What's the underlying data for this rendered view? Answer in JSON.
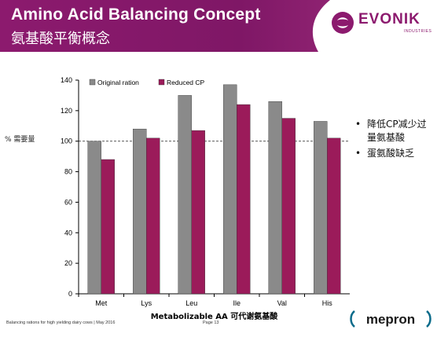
{
  "header": {
    "title_en": "Amino Acid Balancing Concept",
    "title_zh": "氨基酸平衡概念"
  },
  "logo": {
    "text": "EVONIK",
    "subtext": "INDUSTRIES"
  },
  "side_label": "% 需要量",
  "bullets": [
    {
      "text": "降低CP减少过"
    },
    {
      "text": "量氨基酸"
    },
    {
      "text": "蛋氨酸缺乏"
    }
  ],
  "footer": {
    "left": "Balancing rations for high yielding dairy cows | May 2016",
    "page": "Page 13",
    "brand": "mepron"
  },
  "colors": {
    "brand": "#8c1a6e",
    "original": "#8a8a8a",
    "reduced": "#9b1b5a"
  },
  "chart_data": {
    "type": "bar",
    "categories": [
      "Met",
      "Lys",
      "Leu",
      "Ile",
      "Val",
      "His"
    ],
    "series": [
      {
        "name": "Original ration",
        "values": [
          100,
          108,
          130,
          137,
          126,
          113
        ]
      },
      {
        "name": "Reduced CP",
        "values": [
          88,
          102,
          107,
          124,
          115,
          102
        ]
      }
    ],
    "xlabel": "Metabolizable AA  可代谢氨基酸",
    "ylabel": "",
    "ylim": [
      0,
      140
    ],
    "yticks": [
      0,
      20,
      40,
      60,
      80,
      100,
      120,
      140
    ],
    "reference_line": 100,
    "legend": "top-left",
    "grid": false
  }
}
